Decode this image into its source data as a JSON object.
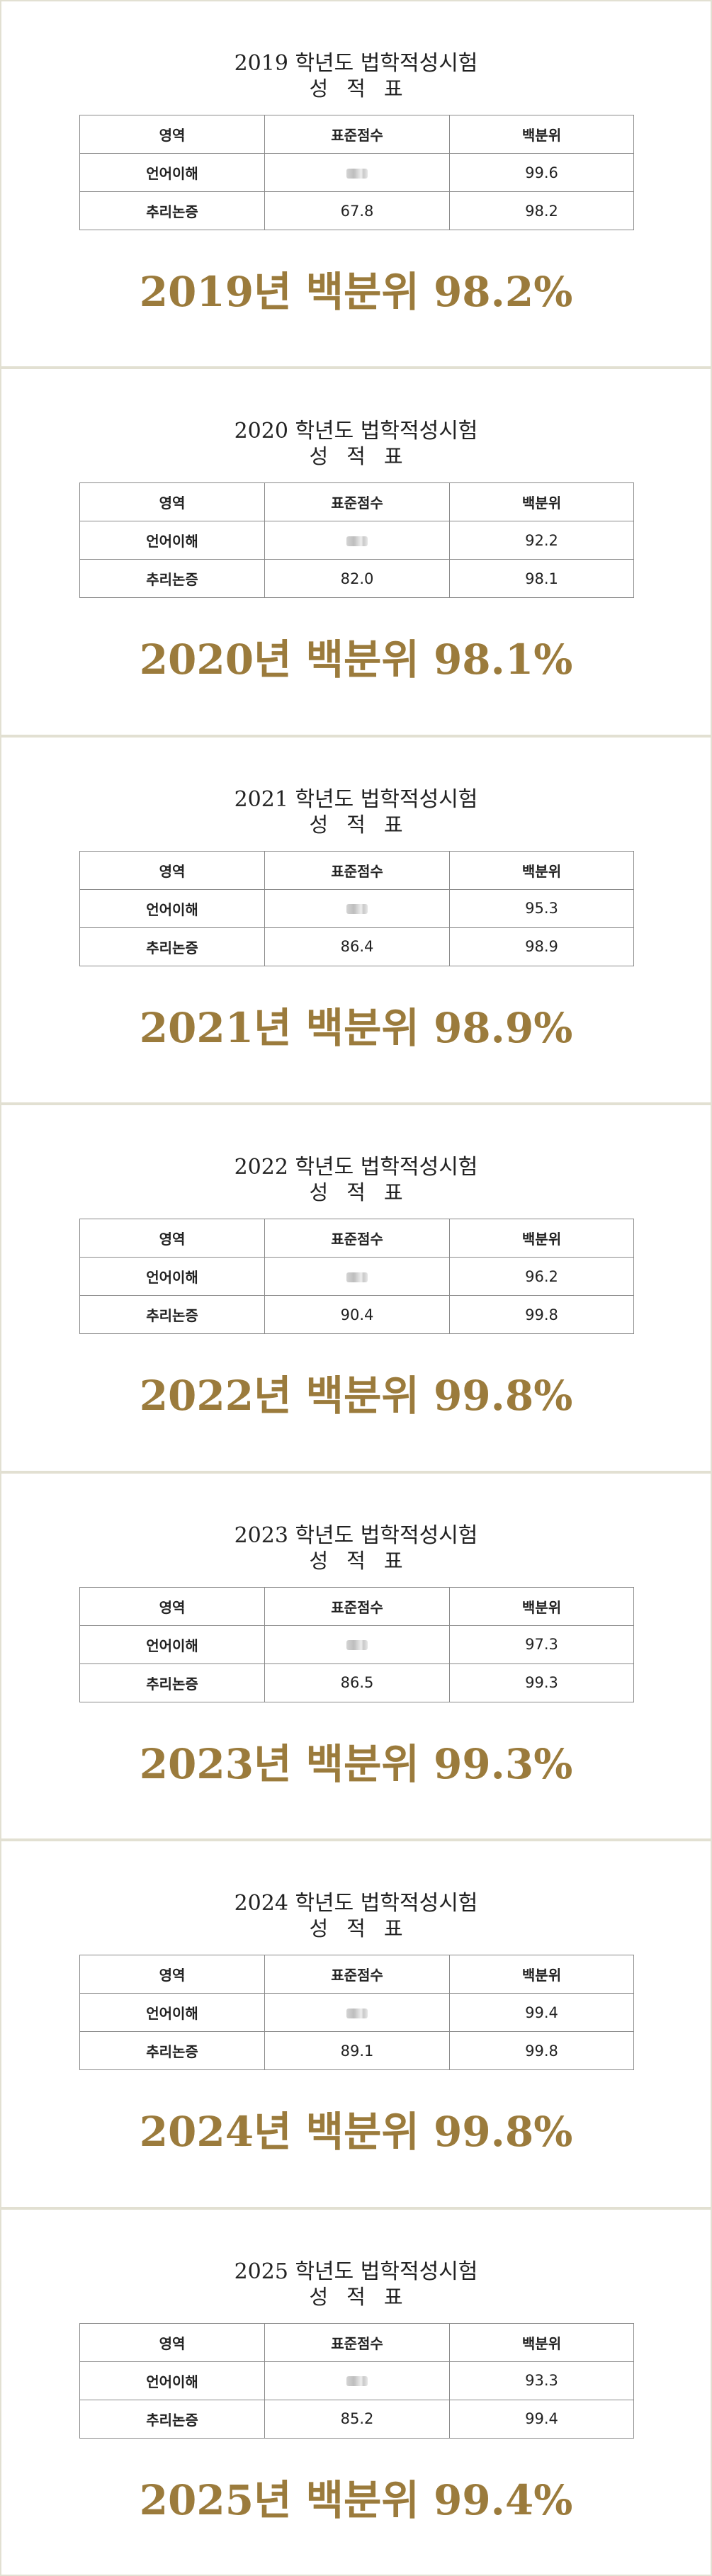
{
  "colors": {
    "accent_gold": "#9b7b3c",
    "border": "#e2e0d2",
    "text": "#222222"
  },
  "table_headers": [
    "영역",
    "표준점수",
    "백분위"
  ],
  "cards": [
    {
      "title": "2019 학년도 법학적성시험",
      "subtitle": "성적표",
      "rows": [
        {
          "area": "언어이해",
          "standard": "",
          "standard_blurred": true,
          "percentile": "99.6"
        },
        {
          "area": "추리논증",
          "standard": "67.8",
          "standard_blurred": false,
          "percentile": "98.2"
        }
      ],
      "result": "2019년 백분위 98.2%"
    },
    {
      "title": "2020 학년도 법학적성시험",
      "subtitle": "성적표",
      "rows": [
        {
          "area": "언어이해",
          "standard": "",
          "standard_blurred": true,
          "percentile": "92.2"
        },
        {
          "area": "추리논증",
          "standard": "82.0",
          "standard_blurred": false,
          "percentile": "98.1"
        }
      ],
      "result": "2020년 백분위 98.1%"
    },
    {
      "title": "2021 학년도 법학적성시험",
      "subtitle": "성적표",
      "rows": [
        {
          "area": "언어이해",
          "standard": "",
          "standard_blurred": true,
          "percentile": "95.3"
        },
        {
          "area": "추리논증",
          "standard": "86.4",
          "standard_blurred": false,
          "percentile": "98.9"
        }
      ],
      "result": "2021년 백분위 98.9%"
    },
    {
      "title": "2022 학년도 법학적성시험",
      "subtitle": "성적표",
      "rows": [
        {
          "area": "언어이해",
          "standard": "",
          "standard_blurred": true,
          "percentile": "96.2"
        },
        {
          "area": "추리논증",
          "standard": "90.4",
          "standard_blurred": false,
          "percentile": "99.8"
        }
      ],
      "result": "2022년 백분위 99.8%"
    },
    {
      "title": "2023 학년도 법학적성시험",
      "subtitle": "성적표",
      "rows": [
        {
          "area": "언어이해",
          "standard": "",
          "standard_blurred": true,
          "percentile": "97.3"
        },
        {
          "area": "추리논증",
          "standard": "86.5",
          "standard_blurred": false,
          "percentile": "99.3"
        }
      ],
      "result": "2023년 백분위 99.3%"
    },
    {
      "title": "2024 학년도 법학적성시험",
      "subtitle": "성적표",
      "rows": [
        {
          "area": "언어이해",
          "standard": "",
          "standard_blurred": true,
          "percentile": "99.4"
        },
        {
          "area": "추리논증",
          "standard": "89.1",
          "standard_blurred": false,
          "percentile": "99.8"
        }
      ],
      "result": "2024년 백분위 99.8%"
    },
    {
      "title": "2025 학년도 법학적성시험",
      "subtitle": "성적표",
      "rows": [
        {
          "area": "언어이해",
          "standard": "",
          "standard_blurred": true,
          "percentile": "93.3"
        },
        {
          "area": "추리논증",
          "standard": "85.2",
          "standard_blurred": false,
          "percentile": "99.4"
        }
      ],
      "result": "2025년 백분위 99.4%"
    }
  ]
}
